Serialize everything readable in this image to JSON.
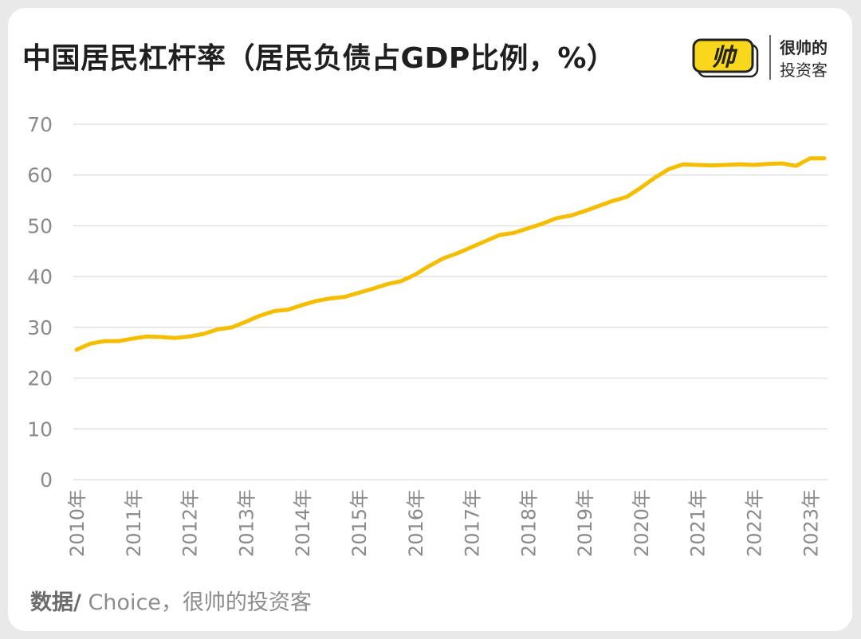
{
  "header": {
    "title": "中国居民杠杆率（居民负债占GDP比例，%）"
  },
  "logo": {
    "mark": "帅",
    "line1": "很帅的",
    "line2": "投资客"
  },
  "source": {
    "label": "数据/",
    "text": " Choice，很帅的投资客"
  },
  "colors": {
    "line": "#f5bd00",
    "grid": "#dcdcdc",
    "tick_text": "#8a8a8a",
    "logo_yellow": "#f9d71c"
  },
  "chart_data": {
    "type": "line",
    "title": "中国居民杠杆率（居民负债占GDP比例，%）",
    "xlabel": "",
    "ylabel": "",
    "ylim": [
      0,
      70
    ],
    "yticks": [
      0,
      10,
      20,
      30,
      40,
      50,
      60,
      70
    ],
    "grid": true,
    "x_tick_labels": [
      "2010年",
      "2011年",
      "2012年",
      "2013年",
      "2014年",
      "2015年",
      "2016年",
      "2017年",
      "2018年",
      "2019年",
      "2020年",
      "2021年",
      "2022年",
      "2023年"
    ],
    "x": [
      "2010-Q1",
      "2010-Q2",
      "2010-Q3",
      "2010-Q4",
      "2011-Q1",
      "2011-Q2",
      "2011-Q3",
      "2011-Q4",
      "2012-Q1",
      "2012-Q2",
      "2012-Q3",
      "2012-Q4",
      "2013-Q1",
      "2013-Q2",
      "2013-Q3",
      "2013-Q4",
      "2014-Q1",
      "2014-Q2",
      "2014-Q3",
      "2014-Q4",
      "2015-Q1",
      "2015-Q2",
      "2015-Q3",
      "2015-Q4",
      "2016-Q1",
      "2016-Q2",
      "2016-Q3",
      "2016-Q4",
      "2017-Q1",
      "2017-Q2",
      "2017-Q3",
      "2017-Q4",
      "2018-Q1",
      "2018-Q2",
      "2018-Q3",
      "2018-Q4",
      "2019-Q1",
      "2019-Q2",
      "2019-Q3",
      "2019-Q4",
      "2020-Q1",
      "2020-Q2",
      "2020-Q3",
      "2020-Q4",
      "2021-Q1",
      "2021-Q2",
      "2021-Q3",
      "2021-Q4",
      "2022-Q1",
      "2022-Q2",
      "2022-Q3",
      "2022-Q4",
      "2023-Q1",
      "2023-Q2"
    ],
    "series": [
      {
        "values": [
          25.6,
          26.8,
          27.3,
          27.3,
          27.8,
          28.2,
          28.1,
          27.9,
          28.2,
          28.7,
          29.6,
          30.0,
          31.1,
          32.3,
          33.2,
          33.5,
          34.4,
          35.2,
          35.7,
          36.0,
          36.8,
          37.6,
          38.5,
          39.1,
          40.4,
          42.1,
          43.6,
          44.6,
          45.8,
          47.0,
          48.2,
          48.6,
          49.5,
          50.4,
          51.5,
          52.0,
          52.9,
          53.9,
          54.9,
          55.7,
          57.5,
          59.5,
          61.2,
          62.1,
          62.0,
          61.9,
          62.0,
          62.1,
          62.0,
          62.2,
          62.3,
          61.8,
          63.3,
          63.3
        ]
      }
    ]
  }
}
